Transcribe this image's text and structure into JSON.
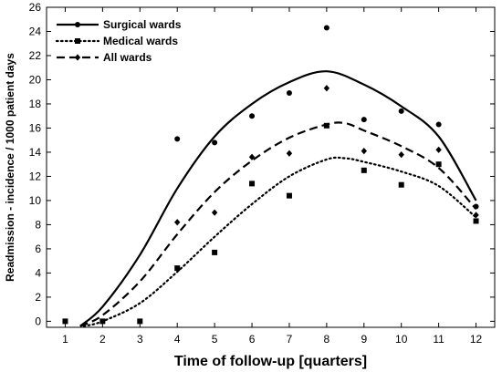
{
  "chart_data": {
    "type": "scatter",
    "xlabel": "Time of follow-up [quarters]",
    "ylabel": "Readmission - incidence / 1000 patient days",
    "xlim": [
      0.5,
      12.5
    ],
    "ylim": [
      -0.5,
      26
    ],
    "x_ticks": [
      "1",
      "2",
      "3",
      "4",
      "5",
      "6",
      "7",
      "8",
      "9",
      "10",
      "11",
      "12"
    ],
    "y_ticks": [
      "0",
      "2",
      "4",
      "6",
      "8",
      "10",
      "12",
      "14",
      "16",
      "18",
      "20",
      "22",
      "24",
      "26"
    ],
    "grid": false,
    "legend_position": "top-left",
    "series": [
      {
        "name": "Surgical wards",
        "marker": "circle",
        "line_style": "solid",
        "points": [
          {
            "x": 4,
            "y": 15.1
          },
          {
            "x": 5,
            "y": 14.8
          },
          {
            "x": 6,
            "y": 17.0
          },
          {
            "x": 7,
            "y": 18.9
          },
          {
            "x": 8,
            "y": 24.3
          },
          {
            "x": 9,
            "y": 16.7
          },
          {
            "x": 10,
            "y": 17.4
          },
          {
            "x": 11,
            "y": 16.3
          },
          {
            "x": 12,
            "y": 9.5
          }
        ],
        "fit": [
          {
            "x": 1.4,
            "y": -0.4
          },
          {
            "x": 2,
            "y": 1.2
          },
          {
            "x": 3,
            "y": 5.5
          },
          {
            "x": 4,
            "y": 11.0
          },
          {
            "x": 5,
            "y": 15.3
          },
          {
            "x": 6,
            "y": 18.0
          },
          {
            "x": 7,
            "y": 19.8
          },
          {
            "x": 8,
            "y": 20.7
          },
          {
            "x": 9,
            "y": 19.6
          },
          {
            "x": 10,
            "y": 17.8
          },
          {
            "x": 11,
            "y": 15.3
          },
          {
            "x": 12,
            "y": 10.0
          }
        ]
      },
      {
        "name": "Medical wards",
        "marker": "square",
        "line_style": "dotted",
        "points": [
          {
            "x": 1,
            "y": 0.0
          },
          {
            "x": 2,
            "y": 0.0
          },
          {
            "x": 3,
            "y": 0.0
          },
          {
            "x": 4,
            "y": 4.4
          },
          {
            "x": 5,
            "y": 5.7
          },
          {
            "x": 6,
            "y": 11.4
          },
          {
            "x": 7,
            "y": 10.4
          },
          {
            "x": 8,
            "y": 16.2
          },
          {
            "x": 9,
            "y": 12.5
          },
          {
            "x": 10,
            "y": 11.3
          },
          {
            "x": 11,
            "y": 13.0
          },
          {
            "x": 12,
            "y": 8.3
          }
        ],
        "fit": [
          {
            "x": 1.5,
            "y": -0.4
          },
          {
            "x": 2,
            "y": 0.0
          },
          {
            "x": 3,
            "y": 1.5
          },
          {
            "x": 4,
            "y": 4.1
          },
          {
            "x": 5,
            "y": 7.0
          },
          {
            "x": 6,
            "y": 9.7
          },
          {
            "x": 7,
            "y": 12.0
          },
          {
            "x": 8,
            "y": 13.4
          },
          {
            "x": 8.5,
            "y": 13.5
          },
          {
            "x": 9,
            "y": 13.2
          },
          {
            "x": 10,
            "y": 12.4
          },
          {
            "x": 11,
            "y": 11.2
          },
          {
            "x": 12,
            "y": 8.6
          }
        ]
      },
      {
        "name": "All wards",
        "marker": "diamond",
        "line_style": "dashed",
        "points": [
          {
            "x": 4,
            "y": 8.2
          },
          {
            "x": 5,
            "y": 9.0
          },
          {
            "x": 6,
            "y": 13.6
          },
          {
            "x": 7,
            "y": 13.9
          },
          {
            "x": 8,
            "y": 19.3
          },
          {
            "x": 9,
            "y": 14.1
          },
          {
            "x": 10,
            "y": 13.8
          },
          {
            "x": 11,
            "y": 14.2
          },
          {
            "x": 12,
            "y": 8.8
          }
        ],
        "fit": [
          {
            "x": 1.4,
            "y": -0.4
          },
          {
            "x": 2,
            "y": 0.5
          },
          {
            "x": 3,
            "y": 3.3
          },
          {
            "x": 4,
            "y": 7.2
          },
          {
            "x": 5,
            "y": 10.7
          },
          {
            "x": 6,
            "y": 13.3
          },
          {
            "x": 7,
            "y": 15.2
          },
          {
            "x": 8,
            "y": 16.3
          },
          {
            "x": 8.5,
            "y": 16.4
          },
          {
            "x": 9,
            "y": 15.8
          },
          {
            "x": 10,
            "y": 14.5
          },
          {
            "x": 11,
            "y": 12.7
          },
          {
            "x": 12,
            "y": 9.3
          }
        ]
      }
    ]
  }
}
